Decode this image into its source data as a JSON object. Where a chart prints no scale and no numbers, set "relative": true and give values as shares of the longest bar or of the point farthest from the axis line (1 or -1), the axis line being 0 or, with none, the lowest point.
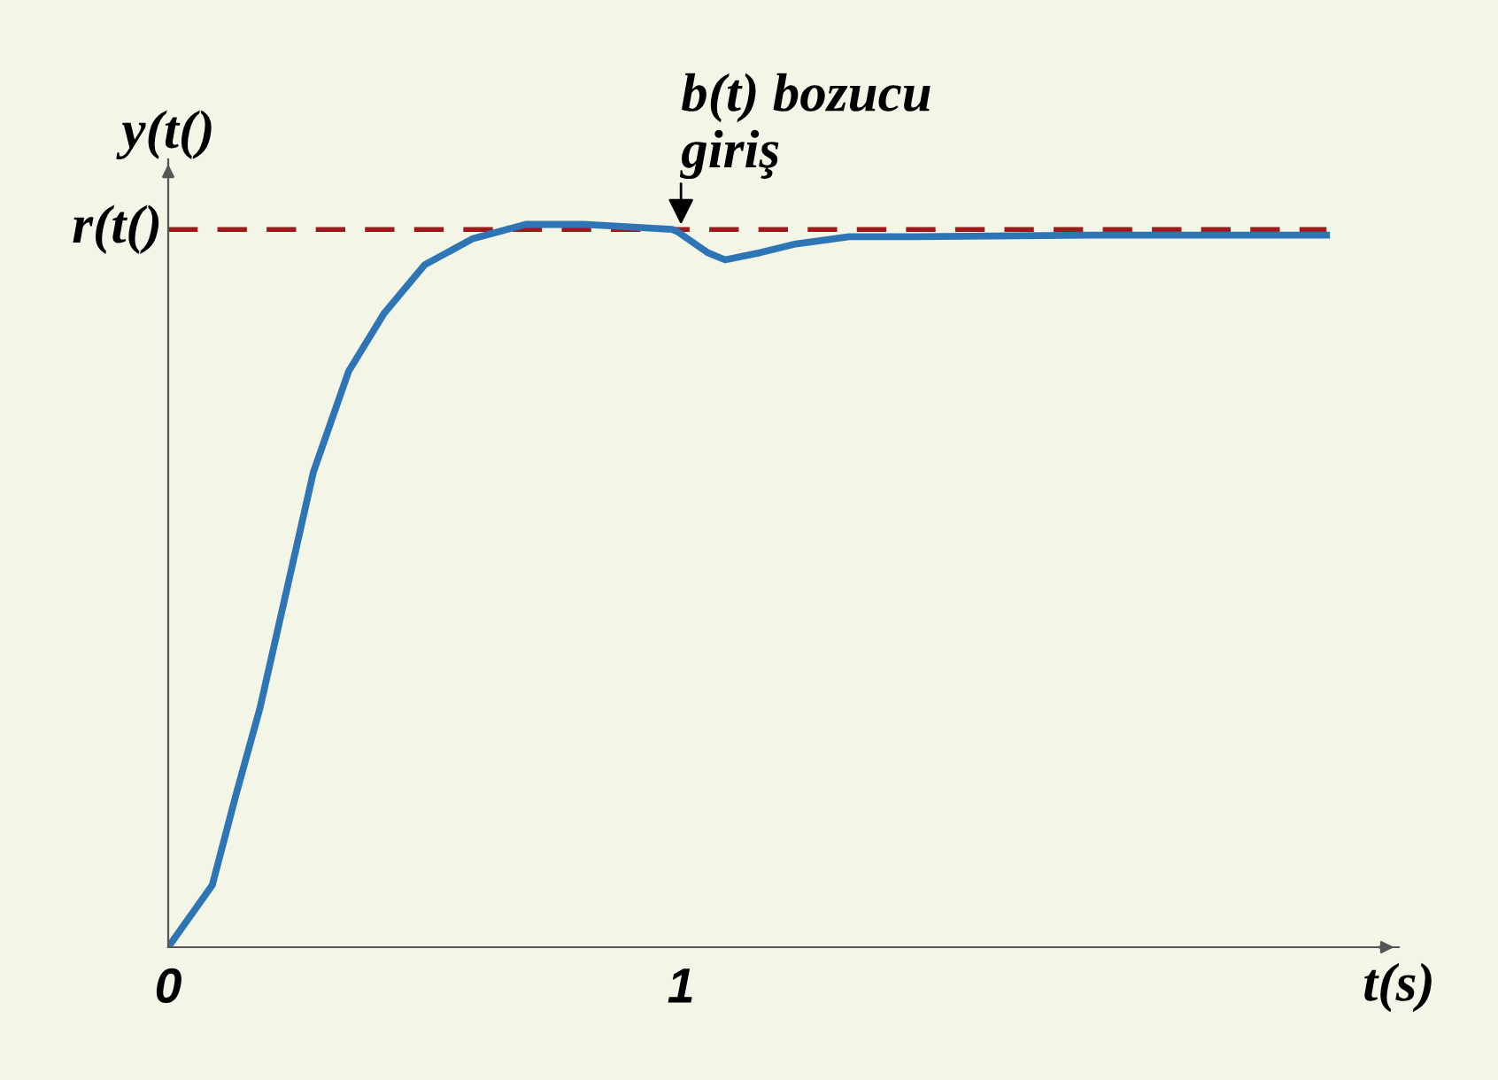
{
  "chart_data": {
    "type": "line",
    "relative": true,
    "xlabel": "t(s)",
    "ylabel": "y(t()",
    "xlim": [
      0,
      2.4
    ],
    "xticks": [
      0,
      1
    ],
    "series": [
      {
        "color": "#2e75b6",
        "x": [
          0,
          0.086,
          0.131,
          0.179,
          0.283,
          0.352,
          0.421,
          0.5,
          0.593,
          0.697,
          0.81,
          0.983,
          0.993,
          1.052,
          1.086,
          1.155,
          1.224,
          1.328,
          1.455,
          1.8,
          2.259
        ],
        "values": [
          0,
          0.086,
          0.208,
          0.331,
          0.657,
          0.797,
          0.877,
          0.944,
          0.98,
          1.0,
          1.0,
          0.993,
          0.99,
          0.961,
          0.951,
          0.961,
          0.973,
          0.983,
          0.983,
          0.985,
          0.985
        ]
      }
    ],
    "ref_lines": [
      {
        "axis": "y",
        "value": 0.993,
        "label": "r(t()",
        "color": "#9e1b1b",
        "line_style": "dashed"
      }
    ],
    "annotations": [
      {
        "text": "b(t) bozucu\ngiriş",
        "x": 1.0,
        "y": 0.993
      }
    ],
    "grid": false,
    "legend": false,
    "marker": "none",
    "line_style": "solid"
  }
}
